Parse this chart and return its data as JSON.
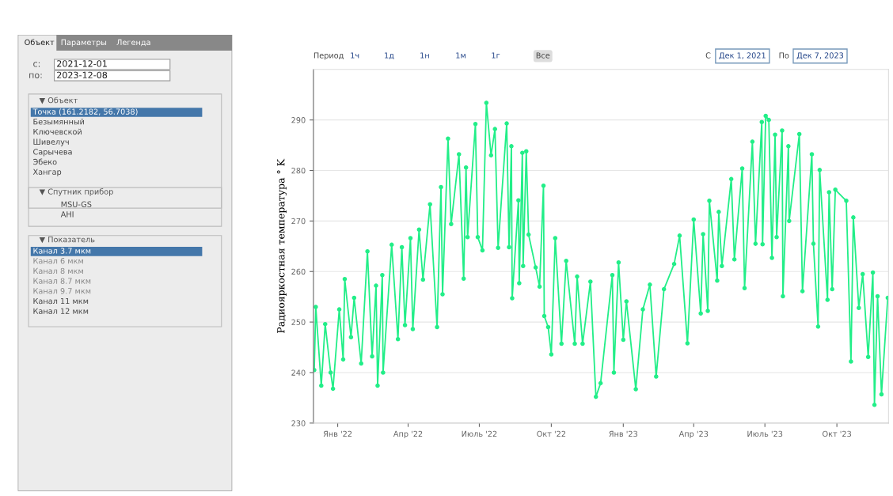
{
  "chart_data": [
    {
      "type": "other",
      "annotations": [
        "Объект",
        "Параметры",
        "Легенда",
        "с:",
        "2021-12-01",
        "по:",
        "2023-12-08",
        "▼ Объект",
        "Точка (161.2182, 56.7038)",
        "Безымянный",
        "Ключевской",
        "Шивелуч",
        "Сарычева",
        "Эбеко",
        "Хангар",
        "▼ Спутник прибор",
        "MSU-GS",
        "AHI",
        "▼ Показатель",
        "Канал 3.7 мкм",
        "Канал 6 мкм",
        "Канал 8 мкм",
        "Канал 8.7 мкм",
        "Канал 9.7 мкм",
        "Канал 11 мкм",
        "Канал 12 мкм"
      ]
    },
    {
      "type": "line",
      "ylabel": "Радиояркостная температура ° K",
      "marker": "circle",
      "grid": "y",
      "legend": false,
      "annotations": [
        "Период",
        "1ч",
        "1д",
        "1н",
        "1м",
        "1г",
        "Все",
        "С",
        "Дек 1, 2021",
        "По",
        "Дек 7, 2023"
      ],
      "xlim": [
        "2021-12-01",
        "2023-12-06"
      ],
      "ylim": [
        230,
        300
      ],
      "xticks": [
        {
          "value": "2022-01-01",
          "label": "Янв '22"
        },
        {
          "value": "2022-04-01",
          "label": "Апр '22"
        },
        {
          "value": "2022-07-01",
          "label": "Июль '22"
        },
        {
          "value": "2022-10-01",
          "label": "Окт '22"
        },
        {
          "value": "2023-01-01",
          "label": "Янв '23"
        },
        {
          "value": "2023-04-01",
          "label": "Апр '23"
        },
        {
          "value": "2023-07-01",
          "label": "Июль '23"
        },
        {
          "value": "2023-10-01",
          "label": "Окт '23"
        }
      ],
      "yticks": [
        230,
        240,
        250,
        260,
        270,
        280,
        290
      ],
      "series": [
        {
          "color": "#22ee88",
          "x": [
            "2021-12-02",
            "2021-12-04",
            "2021-12-11",
            "2021-12-16",
            "2021-12-23",
            "2021-12-26",
            "2022-01-03",
            "2022-01-08",
            "2022-01-10",
            "2022-01-18",
            "2022-01-22",
            "2022-01-31",
            "2022-02-08",
            "2022-02-14",
            "2022-02-19",
            "2022-02-21",
            "2022-02-27",
            "2022-02-28",
            "2022-03-11",
            "2022-03-19",
            "2022-03-24",
            "2022-03-28",
            "2022-04-04",
            "2022-04-07",
            "2022-04-15",
            "2022-04-20",
            "2022-04-29",
            "2022-05-08",
            "2022-05-13",
            "2022-05-15",
            "2022-05-22",
            "2022-05-26",
            "2022-06-05",
            "2022-06-11",
            "2022-06-14",
            "2022-06-16",
            "2022-06-26",
            "2022-06-29",
            "2022-07-05",
            "2022-07-10",
            "2022-07-16",
            "2022-07-21",
            "2022-07-25",
            "2022-08-05",
            "2022-08-08",
            "2022-08-11",
            "2022-08-12",
            "2022-08-20",
            "2022-08-21",
            "2022-08-25",
            "2022-08-26",
            "2022-08-30",
            "2022-09-02",
            "2022-09-11",
            "2022-09-16",
            "2022-09-21",
            "2022-09-22",
            "2022-09-27",
            "2022-10-01",
            "2022-10-06",
            "2022-10-14",
            "2022-10-20",
            "2022-10-31",
            "2022-11-03",
            "2022-11-10",
            "2022-11-20",
            "2022-11-27",
            "2022-12-03",
            "2022-12-18",
            "2022-12-20",
            "2022-12-26",
            "2023-01-01",
            "2023-01-05",
            "2023-01-17",
            "2023-01-26",
            "2023-02-04",
            "2023-02-12",
            "2023-02-22",
            "2023-03-07",
            "2023-03-14",
            "2023-03-24",
            "2023-04-01",
            "2023-04-10",
            "2023-04-13",
            "2023-04-19",
            "2023-04-21",
            "2023-05-01",
            "2023-05-03",
            "2023-05-07",
            "2023-05-19",
            "2023-05-23",
            "2023-06-02",
            "2023-06-05",
            "2023-06-15",
            "2023-06-19",
            "2023-06-27",
            "2023-06-28",
            "2023-07-02",
            "2023-07-06",
            "2023-07-10",
            "2023-07-14",
            "2023-07-16",
            "2023-07-23",
            "2023-07-24",
            "2023-07-31",
            "2023-08-01",
            "2023-08-14",
            "2023-08-18",
            "2023-08-30",
            "2023-09-01",
            "2023-09-07",
            "2023-09-09",
            "2023-09-19",
            "2023-09-21",
            "2023-09-25",
            "2023-09-29",
            "2023-10-13",
            "2023-10-19",
            "2023-10-22",
            "2023-10-29",
            "2023-11-03",
            "2023-11-10",
            "2023-11-16",
            "2023-11-18",
            "2023-11-22",
            "2023-11-27",
            "2023-12-05"
          ],
          "values": [
            240.5,
            253,
            237.4,
            249.6,
            240,
            236.8,
            252.5,
            242.6,
            258.5,
            247,
            254.8,
            241.8,
            264,
            243.2,
            257.2,
            237.4,
            259.3,
            240,
            265.3,
            246.6,
            264.8,
            249.4,
            266.6,
            248.6,
            268.3,
            258.4,
            273.3,
            249,
            276.7,
            255.5,
            286.3,
            269.4,
            283.2,
            258.6,
            280.6,
            266.8,
            289.2,
            266.8,
            264.2,
            293.4,
            283,
            288.2,
            264.7,
            289.3,
            264.8,
            284.8,
            254.7,
            274.1,
            257.7,
            283.5,
            261.1,
            283.8,
            267.3,
            260.8,
            257,
            277,
            251.2,
            249,
            243.6,
            266.6,
            245.7,
            262.1,
            245.7,
            259,
            245.7,
            258,
            235.2,
            237.9,
            259.3,
            240,
            261.8,
            246.5,
            254.1,
            236.7,
            252.5,
            257.4,
            239.2,
            256.5,
            261.5,
            267.1,
            245.8,
            270.3,
            251.7,
            267.4,
            252.2,
            274,
            258.2,
            271.8,
            261.1,
            278.3,
            262.4,
            280.4,
            256.7,
            285.7,
            265.5,
            289.6,
            265.4,
            290.8,
            290,
            262.7,
            287.1,
            266.8,
            287.9,
            255.1,
            284.8,
            270,
            287.2,
            256.1,
            283.2,
            265.5,
            249.1,
            280.1,
            254.4,
            275.7,
            256.5,
            276.2,
            274,
            242.2,
            270.7,
            252.8,
            259.5,
            243.1,
            259.8,
            233.6,
            255.1,
            235.7,
            254.8
          ]
        }
      ]
    }
  ]
}
